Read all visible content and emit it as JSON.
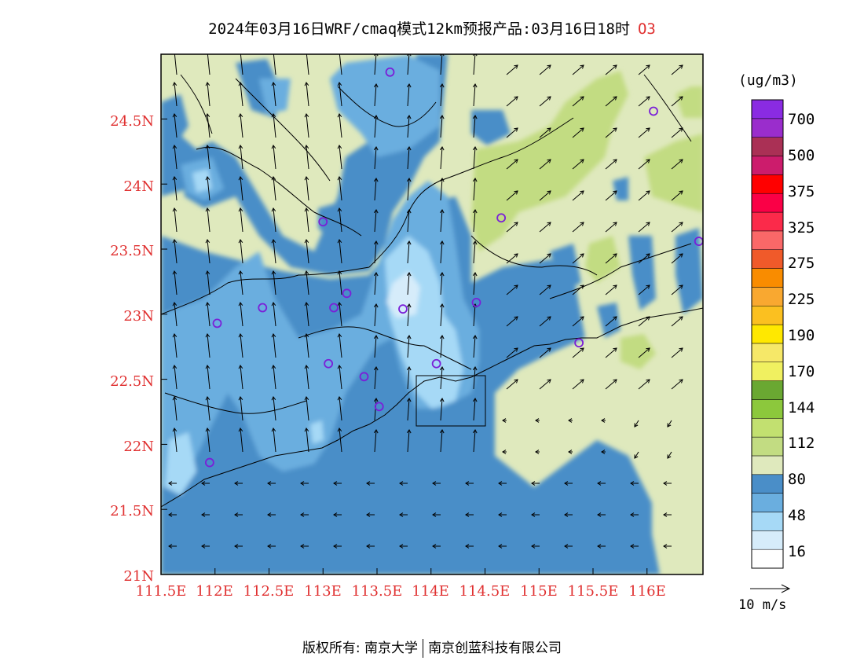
{
  "title": {
    "text": "2024年03月16日WRF/cmaq模式12km预报产品:03月16日18时",
    "species": "O3"
  },
  "colorbar": {
    "unit": "(ug/m3)",
    "bins": [
      {
        "color": "#ffffff"
      },
      {
        "color": "#d6ecfa"
      },
      {
        "color": "#a6d9f6"
      },
      {
        "color": "#6aaedf"
      },
      {
        "color": "#4a8ec8"
      },
      {
        "color": "#dfe9bd"
      },
      {
        "color": "#c2dc82"
      },
      {
        "color": "#c2e070"
      },
      {
        "color": "#8cc83c"
      },
      {
        "color": "#6aa832"
      },
      {
        "color": "#f0f060"
      },
      {
        "color": "#f6e868"
      },
      {
        "color": "#ffe800"
      },
      {
        "color": "#fbc020"
      },
      {
        "color": "#f9a830"
      },
      {
        "color": "#f98c00"
      },
      {
        "color": "#f05a2a"
      },
      {
        "color": "#fa6868"
      },
      {
        "color": "#fb2a4a"
      },
      {
        "color": "#fa0046"
      },
      {
        "color": "#ff0000"
      },
      {
        "color": "#cc1c6c"
      },
      {
        "color": "#aa3055"
      },
      {
        "color": "#9a2dcc"
      },
      {
        "color": "#8a2be2"
      }
    ],
    "labels": [
      "16",
      "48",
      "80",
      "112",
      "144",
      "170",
      "190",
      "225",
      "275",
      "325",
      "375",
      "500",
      "700"
    ]
  },
  "axes": {
    "lat_labels": [
      "24.5N",
      "24N",
      "23.5N",
      "23N",
      "22.5N",
      "22N",
      "21.5N",
      "21N"
    ],
    "lon_labels": [
      "111.5E",
      "112E",
      "112.5E",
      "113E",
      "113.5E",
      "114E",
      "114.5E",
      "115E",
      "115.5E",
      "116E"
    ]
  },
  "vector_ref": {
    "label": "10 m/s"
  },
  "footer": {
    "left": "版权所有: 南京大学",
    "right": "南京创蓝科技有限公司"
  },
  "stations": [
    {
      "lon": 113.62,
      "lat": 24.86
    },
    {
      "lon": 113.0,
      "lat": 23.71
    },
    {
      "lon": 114.65,
      "lat": 23.74
    },
    {
      "lon": 116.06,
      "lat": 24.56
    },
    {
      "lon": 116.48,
      "lat": 23.56
    },
    {
      "lon": 112.44,
      "lat": 23.05
    },
    {
      "lon": 113.1,
      "lat": 23.05
    },
    {
      "lon": 113.22,
      "lat": 23.16
    },
    {
      "lon": 113.74,
      "lat": 23.04
    },
    {
      "lon": 114.42,
      "lat": 23.09
    },
    {
      "lon": 112.02,
      "lat": 22.93
    },
    {
      "lon": 113.05,
      "lat": 22.62
    },
    {
      "lon": 113.38,
      "lat": 22.52
    },
    {
      "lon": 114.05,
      "lat": 22.62
    },
    {
      "lon": 113.52,
      "lat": 22.29
    },
    {
      "lon": 115.37,
      "lat": 22.78
    },
    {
      "lon": 111.95,
      "lat": 21.86
    }
  ]
}
